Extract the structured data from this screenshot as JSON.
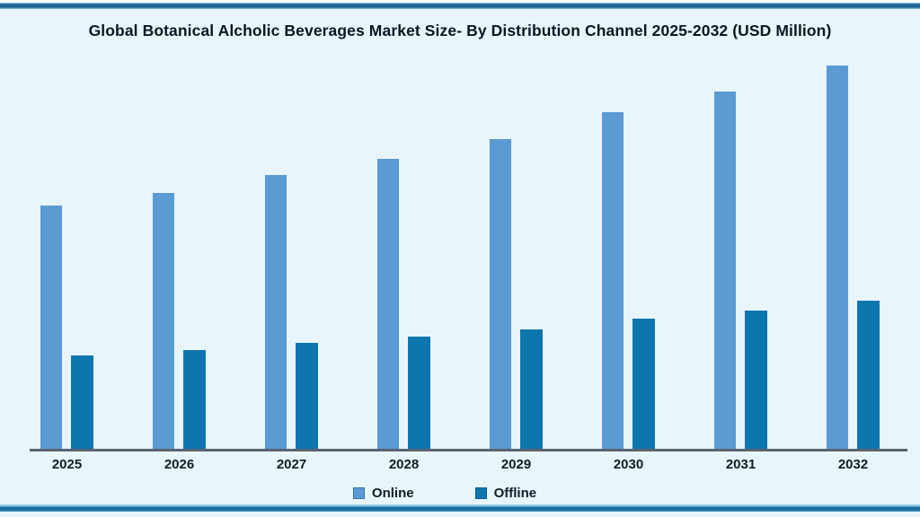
{
  "chart_data": {
    "type": "bar",
    "title": "Global Botanical Alcholic Beverages Market Size- By Distribution Channel 2025-2032 (USD Million)",
    "categories": [
      "2025",
      "2026",
      "2027",
      "2028",
      "2029",
      "2030",
      "2031",
      "2032"
    ],
    "series": [
      {
        "name": "Online",
        "color": "#5b9ad2",
        "marker_border": "#2e74ae",
        "values": [
          272,
          286,
          306,
          324,
          346,
          376,
          399,
          428
        ]
      },
      {
        "name": "Offline",
        "color": "#0e76af",
        "marker_border": "#0a5c88",
        "values": [
          105,
          111,
          119,
          126,
          134,
          146,
          155,
          166
        ]
      }
    ],
    "xlabel": "",
    "ylabel": "",
    "value_unit": "USD Million",
    "y_axis_visible": false,
    "y_tick_labels": [],
    "values_are": "relative bar heights (pixels); no numeric axis shown in chart",
    "grid": false,
    "legend_position": "bottom",
    "colors": {
      "background": "#e8f5fb",
      "axis_line": "#5a6470",
      "band_dark_blue": "#1b6795",
      "text": "#121c28"
    }
  }
}
